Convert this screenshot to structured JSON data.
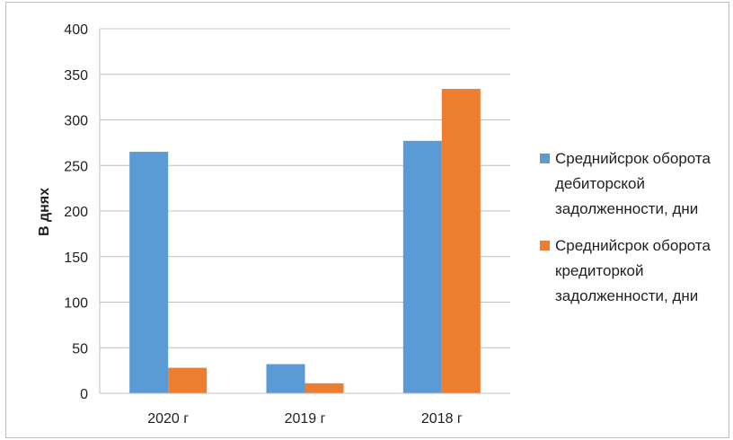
{
  "chart_data": {
    "type": "bar",
    "categories": [
      "2020 г",
      "2019 г",
      "2018 г"
    ],
    "series": [
      {
        "name": "Среднийсрок оборота дебиторской задолженности, дни",
        "name_lines": [
          "Среднийсрок оборота",
          "дебиторской",
          "задолженности, дни"
        ],
        "values": [
          265,
          32,
          277
        ],
        "color": "#5b9bd5"
      },
      {
        "name": "Среднийсрок оборота кредиторкой задолженности, дни",
        "name_lines": [
          "Среднийсрок оборота",
          "кредиторкой",
          "задолженности, дни"
        ],
        "values": [
          28,
          11,
          334
        ],
        "color": "#ed7d31"
      }
    ],
    "title": "",
    "xlabel": "",
    "ylabel": "В днях",
    "ylim": [
      0,
      400
    ],
    "yticks": [
      0,
      50,
      100,
      150,
      200,
      250,
      300,
      350,
      400
    ],
    "grid": true,
    "legend_position": "right"
  }
}
